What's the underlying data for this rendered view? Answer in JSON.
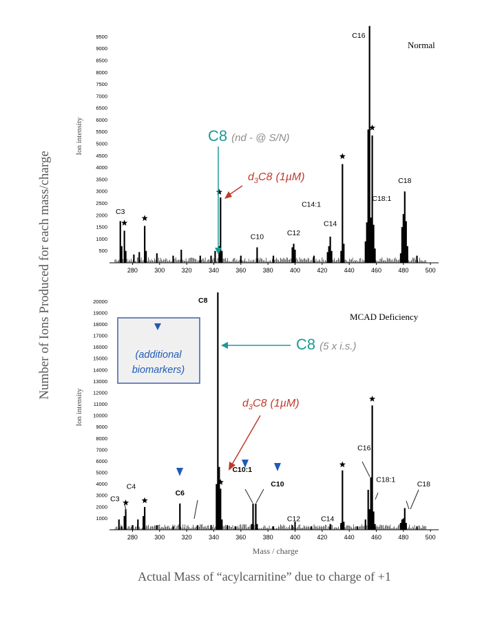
{
  "figure": {
    "ylabel": "Number of Ions Produced for each mass/charge",
    "xlabel": "Actual Mass of “acylcarnitine” due to charge of +1"
  },
  "chart_data": [
    {
      "type": "bar",
      "title": "Normal",
      "ylabel": "Ion intensity",
      "xlabel": "",
      "xlim": [
        263,
        506
      ],
      "ylim": [
        0,
        9800
      ],
      "xticks": [
        280,
        300,
        320,
        340,
        360,
        380,
        400,
        420,
        440,
        460,
        480,
        500
      ],
      "yticks": [
        500,
        1000,
        1500,
        2000,
        2500,
        3000,
        3500,
        4000,
        4500,
        5000,
        5500,
        6000,
        6500,
        7000,
        7500,
        8000,
        8500,
        9000,
        9500
      ],
      "peaks": [
        {
          "x": 271,
          "y": 1750
        },
        {
          "x": 272,
          "y": 700
        },
        {
          "x": 274,
          "y": 1350
        },
        {
          "x": 275,
          "y": 500
        },
        {
          "x": 281,
          "y": 350
        },
        {
          "x": 285,
          "y": 450
        },
        {
          "x": 289,
          "y": 1550
        },
        {
          "x": 290,
          "y": 500
        },
        {
          "x": 298,
          "y": 400
        },
        {
          "x": 310,
          "y": 300
        },
        {
          "x": 316,
          "y": 550
        },
        {
          "x": 330,
          "y": 300
        },
        {
          "x": 338,
          "y": 300
        },
        {
          "x": 341,
          "y": 500
        },
        {
          "x": 344,
          "y": 700
        },
        {
          "x": 345,
          "y": 2750
        },
        {
          "x": 346,
          "y": 500
        },
        {
          "x": 360,
          "y": 300
        },
        {
          "x": 372,
          "y": 650
        },
        {
          "x": 384,
          "y": 300
        },
        {
          "x": 398,
          "y": 650
        },
        {
          "x": 399,
          "y": 800
        },
        {
          "x": 400,
          "y": 550
        },
        {
          "x": 414,
          "y": 300
        },
        {
          "x": 424,
          "y": 450
        },
        {
          "x": 425,
          "y": 700
        },
        {
          "x": 426,
          "y": 1100
        },
        {
          "x": 427,
          "y": 500
        },
        {
          "x": 434,
          "y": 500
        },
        {
          "x": 435,
          "y": 4150
        },
        {
          "x": 436,
          "y": 800
        },
        {
          "x": 452,
          "y": 900
        },
        {
          "x": 453,
          "y": 1700
        },
        {
          "x": 454,
          "y": 5600
        },
        {
          "x": 455,
          "y": 9950
        },
        {
          "x": 456,
          "y": 1900
        },
        {
          "x": 457,
          "y": 5350
        },
        {
          "x": 458,
          "y": 1600
        },
        {
          "x": 459,
          "y": 600
        },
        {
          "x": 478,
          "y": 400
        },
        {
          "x": 479,
          "y": 1500
        },
        {
          "x": 480,
          "y": 2050
        },
        {
          "x": 481,
          "y": 3000
        },
        {
          "x": 482,
          "y": 1750
        },
        {
          "x": 483,
          "y": 700
        },
        {
          "x": 490,
          "y": 300
        }
      ],
      "labels": [
        {
          "text": "C3",
          "x": 271,
          "y": 2050,
          "bold": false
        },
        {
          "text": "C10",
          "x": 372,
          "y": 1000,
          "bold": false
        },
        {
          "text": "C12",
          "x": 399,
          "y": 1150,
          "bold": false
        },
        {
          "text": "C14:1",
          "x": 412,
          "y": 2350,
          "bold": false
        },
        {
          "text": "C14",
          "x": 426,
          "y": 1550,
          "bold": false
        },
        {
          "text": "C18:1",
          "x": 464,
          "y": 2600,
          "bold": false
        },
        {
          "text": "C16",
          "x": 447,
          "y": 9450,
          "bold": false
        },
        {
          "text": "C18",
          "x": 481,
          "y": 3350,
          "bold": false
        }
      ],
      "stars": [
        {
          "x": 274,
          "y": 1500
        },
        {
          "x": 289,
          "y": 1700
        },
        {
          "x": 344,
          "y": 2800
        },
        {
          "x": 435,
          "y": 4300
        },
        {
          "x": 457,
          "y": 5500
        }
      ],
      "annotations": [
        {
          "main": "C8",
          "note": "(nd - @ S/N)",
          "color": "#1a9a96",
          "x": 345,
          "y": 5000
        },
        {
          "prefix": "d",
          "sub": "3",
          "main": "C8",
          "note": "(1µM)",
          "color": "#c0392b",
          "x": 362,
          "y": 3750
        }
      ]
    },
    {
      "type": "bar",
      "title": "MCAD  Deficiency",
      "ylabel": "Ion intensity",
      "xlabel": "Mass / charge",
      "xlim": [
        263,
        506
      ],
      "ylim": [
        0,
        20500
      ],
      "xticks": [
        280,
        300,
        320,
        340,
        360,
        380,
        400,
        420,
        440,
        460,
        480,
        500
      ],
      "yticks": [
        1000,
        2000,
        3000,
        4000,
        5000,
        6000,
        7000,
        8000,
        9000,
        10000,
        11000,
        12000,
        13000,
        14000,
        15000,
        16000,
        17000,
        18000,
        19000,
        20000
      ],
      "peaks": [
        {
          "x": 270,
          "y": 900
        },
        {
          "x": 272,
          "y": 300
        },
        {
          "x": 274,
          "y": 1200
        },
        {
          "x": 275,
          "y": 1800
        },
        {
          "x": 280,
          "y": 400
        },
        {
          "x": 284,
          "y": 900
        },
        {
          "x": 288,
          "y": 1200
        },
        {
          "x": 289,
          "y": 2000
        },
        {
          "x": 298,
          "y": 400
        },
        {
          "x": 310,
          "y": 300
        },
        {
          "x": 315,
          "y": 2300
        },
        {
          "x": 328,
          "y": 400
        },
        {
          "x": 338,
          "y": 400
        },
        {
          "x": 342,
          "y": 4000
        },
        {
          "x": 343,
          "y": 20800
        },
        {
          "x": 344,
          "y": 5500
        },
        {
          "x": 345,
          "y": 3600
        },
        {
          "x": 346,
          "y": 900
        },
        {
          "x": 350,
          "y": 400
        },
        {
          "x": 356,
          "y": 300
        },
        {
          "x": 368,
          "y": 500
        },
        {
          "x": 369,
          "y": 2300
        },
        {
          "x": 371,
          "y": 2300
        },
        {
          "x": 372,
          "y": 500
        },
        {
          "x": 384,
          "y": 300
        },
        {
          "x": 398,
          "y": 400
        },
        {
          "x": 400,
          "y": 700
        },
        {
          "x": 412,
          "y": 300
        },
        {
          "x": 426,
          "y": 500
        },
        {
          "x": 434,
          "y": 600
        },
        {
          "x": 435,
          "y": 5200
        },
        {
          "x": 436,
          "y": 700
        },
        {
          "x": 446,
          "y": 300
        },
        {
          "x": 452,
          "y": 900
        },
        {
          "x": 454,
          "y": 3500
        },
        {
          "x": 455,
          "y": 1800
        },
        {
          "x": 456,
          "y": 4600
        },
        {
          "x": 457,
          "y": 10900
        },
        {
          "x": 458,
          "y": 1600
        },
        {
          "x": 459,
          "y": 500
        },
        {
          "x": 478,
          "y": 600
        },
        {
          "x": 479,
          "y": 900
        },
        {
          "x": 480,
          "y": 1000
        },
        {
          "x": 481,
          "y": 1900
        },
        {
          "x": 482,
          "y": 600
        },
        {
          "x": 490,
          "y": 300
        }
      ],
      "labels": [
        {
          "text": "C8",
          "x": 332,
          "y": 19900,
          "bold": true
        },
        {
          "text": "C3",
          "x": 267,
          "y": 2500,
          "bold": false
        },
        {
          "text": "C4",
          "x": 279,
          "y": 3600,
          "bold": false
        },
        {
          "text": "C6",
          "x": 315,
          "y": 3000,
          "bold": true
        },
        {
          "text": "C10:1",
          "x": 361,
          "y": 5050,
          "bold": true
        },
        {
          "text": "C10",
          "x": 387,
          "y": 3800,
          "bold": true
        },
        {
          "text": "C12",
          "x": 399,
          "y": 750,
          "bold": false
        },
        {
          "text": "C14",
          "x": 424,
          "y": 750,
          "bold": false
        },
        {
          "text": "C16",
          "x": 451,
          "y": 6950,
          "bold": false
        },
        {
          "text": "C18:1",
          "x": 467,
          "y": 4200,
          "bold": false
        },
        {
          "text": "C18",
          "x": 495,
          "y": 3800,
          "bold": false
        }
      ],
      "stars": [
        {
          "x": 275,
          "y": 2000
        },
        {
          "x": 289,
          "y": 2200
        },
        {
          "x": 345,
          "y": 3800
        },
        {
          "x": 435,
          "y": 5350
        },
        {
          "x": 457,
          "y": 11100
        }
      ],
      "annotations": [
        {
          "main": "C8",
          "note": "(5 x i.s.)",
          "color": "#1a9a96",
          "x": 343,
          "y": 16000
        },
        {
          "prefix": "d",
          "sub": "3",
          "main": "C8",
          "note": "(1µM)",
          "color": "#c0392b",
          "x": 355,
          "y": 9000
        },
        {
          "box": "(additional biomarkers)",
          "color": "#1f5bb5"
        }
      ]
    }
  ]
}
